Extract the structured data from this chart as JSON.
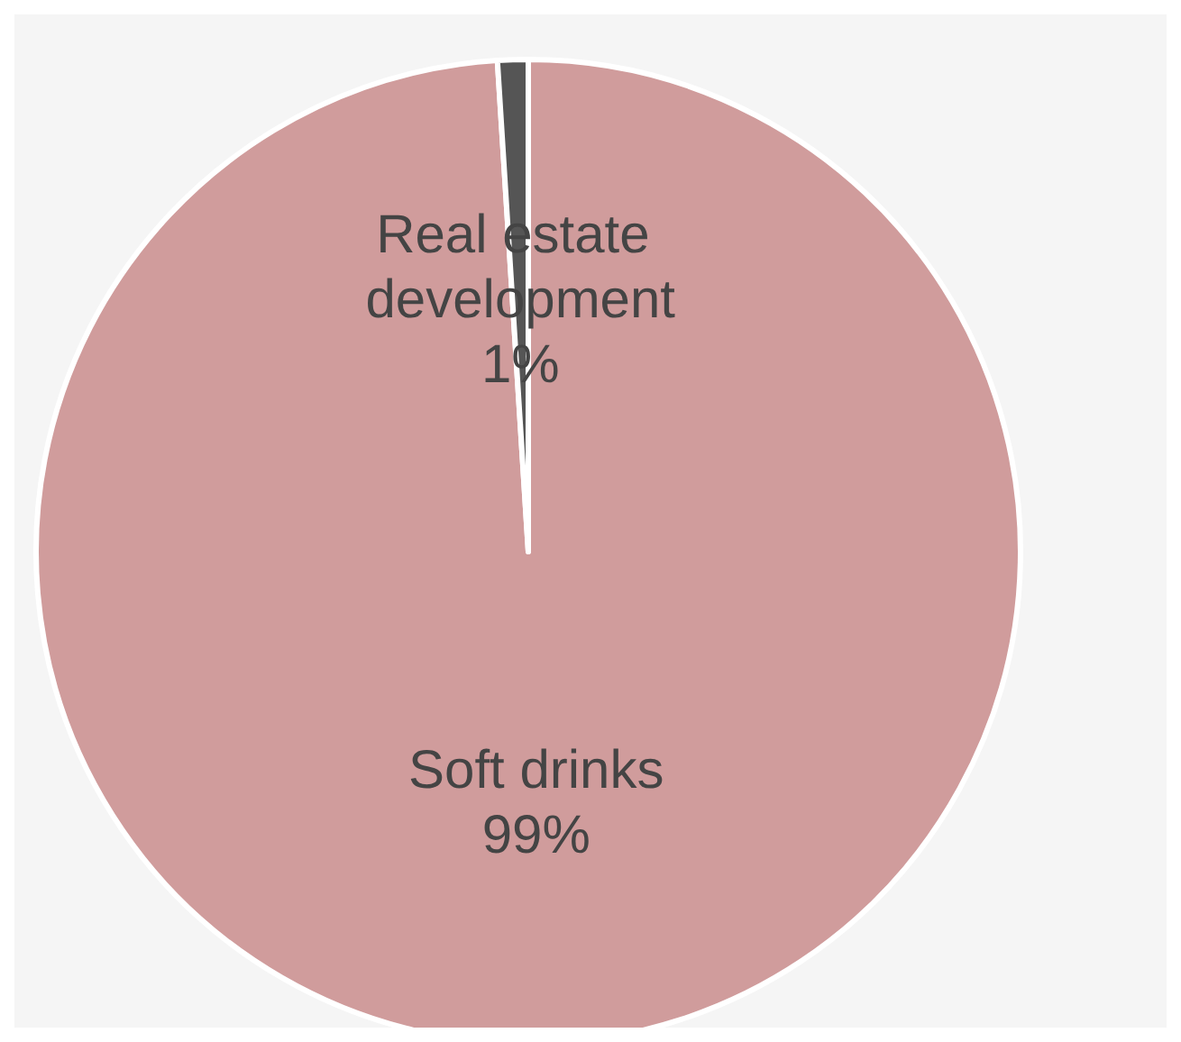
{
  "chart_data": {
    "type": "pie",
    "categories": [
      "Soft drinks",
      "Real estate development"
    ],
    "values": [
      99,
      1
    ],
    "colors": [
      "#d09c9c",
      "#555555"
    ],
    "value_labels": [
      "99%",
      "1%"
    ],
    "legend": false
  }
}
